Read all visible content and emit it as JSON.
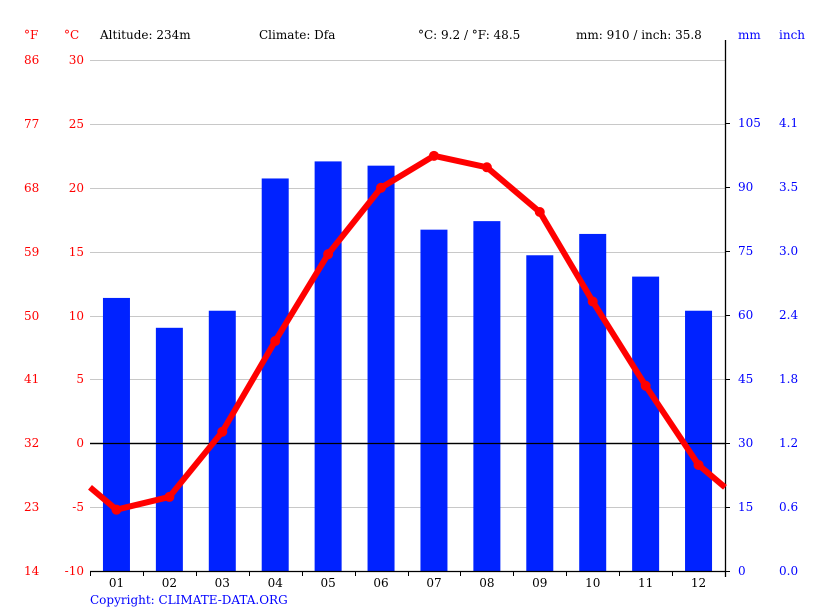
{
  "header": {
    "unit_f": "°F",
    "unit_c": "°C",
    "altitude": "Altitude: 234m",
    "climate": "Climate: Dfa",
    "temp_avg": "°C: 9.2 / °F: 48.5",
    "precip_total": "mm: 910 / inch: 35.8",
    "unit_mm": "mm",
    "unit_inch": "inch"
  },
  "axes": {
    "left_f": [
      "86",
      "77",
      "68",
      "59",
      "50",
      "41",
      "32",
      "23",
      "14"
    ],
    "left_c": [
      "30",
      "25",
      "20",
      "15",
      "10",
      "5",
      "0",
      "-5",
      "-10"
    ],
    "right_mm": [
      "105",
      "90",
      "75",
      "60",
      "45",
      "30",
      "15",
      "0"
    ],
    "right_inch": [
      "4.1",
      "3.5",
      "3.0",
      "2.4",
      "1.8",
      "1.2",
      "0.6",
      "0.0"
    ],
    "months": [
      "01",
      "02",
      "03",
      "04",
      "05",
      "06",
      "07",
      "08",
      "09",
      "10",
      "11",
      "12"
    ]
  },
  "footer": {
    "copyright": "Copyright: CLIMATE-DATA.ORG"
  },
  "colors": {
    "temperature": "#ff0000",
    "precipitation": "#0022ff",
    "grid": "#c8c8c8",
    "axis": "#000000"
  },
  "chart_data": {
    "type": "bar+line",
    "title": "",
    "categories": [
      "01",
      "02",
      "03",
      "04",
      "05",
      "06",
      "07",
      "08",
      "09",
      "10",
      "11",
      "12"
    ],
    "series": [
      {
        "name": "Precipitation (mm)",
        "type": "bar",
        "axis": "right",
        "values": [
          64,
          57,
          61,
          92,
          96,
          95,
          80,
          82,
          74,
          79,
          69,
          61
        ]
      },
      {
        "name": "Temperature (°C)",
        "type": "line",
        "axis": "left",
        "values": [
          -5.2,
          -4.2,
          0.9,
          8.0,
          14.8,
          20.0,
          22.5,
          21.6,
          18.1,
          11.1,
          4.5,
          -1.7
        ]
      }
    ],
    "annotations": [
      "Altitude: 234m",
      "Climate: Dfa",
      "°C: 9.2 / °F: 48.5",
      "mm: 910 / inch: 35.8"
    ],
    "xlabel": "",
    "ylabel_left": "°C / °F",
    "ylabel_right": "mm / inch",
    "ylim_left_c": [
      -10,
      30
    ],
    "ylim_left_f": [
      14,
      86
    ],
    "ylim_right_mm": [
      0,
      120
    ],
    "ylim_right_inch": [
      0.0,
      4.7
    ],
    "grid": true,
    "legend": "none"
  }
}
